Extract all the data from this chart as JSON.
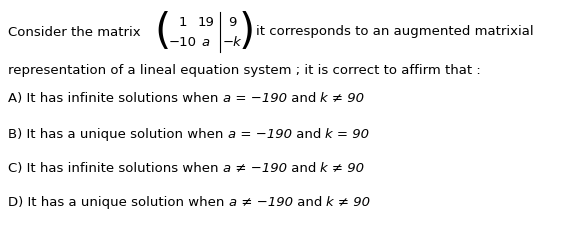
{
  "bg_color": "#ffffff",
  "text_color": "#000000",
  "font_size": 9.5,
  "matrix_font_size": 9.5,
  "consider_text": "Consider the matrix",
  "after_matrix_text": "it corresponds to an augmented matrixial",
  "line2_text": "representation of a lineal equation system ; it is correct to affirm that :",
  "options": [
    {
      "prefix": "A) It has infinite solutions when ",
      "math1": "a = −1​90",
      "mid": " and ",
      "math2": "k ≠ 90"
    },
    {
      "prefix": "B) It has a unique solution when ",
      "math1": "a = −1​90",
      "mid": " and ",
      "math2": "k = 90"
    },
    {
      "prefix": "C) It has infinite solutions when ",
      "math1": "a ≠ −1​90",
      "mid": " and ",
      "math2": "k ≠ 90"
    },
    {
      "prefix": "D) It has a unique solution when ",
      "math1": "a ≠ −1​90",
      "mid": " and ",
      "math2": "k ≠ 90"
    }
  ]
}
